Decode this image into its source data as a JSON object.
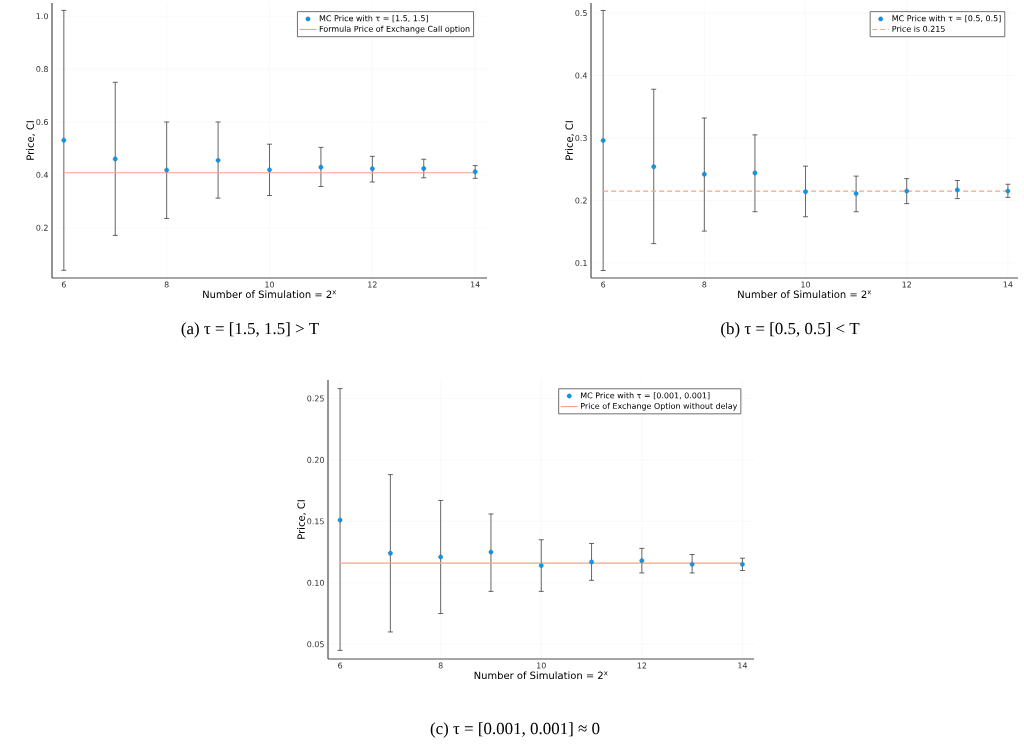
{
  "chart_data": [
    {
      "type": "scatter",
      "title": "(a) τ = [1.5, 1.5] > T",
      "xlabel": "Number of Simulation = 2$^{x}$",
      "ylabel": "Price, CI",
      "x": [
        6,
        7,
        8,
        9,
        10,
        11,
        12,
        13,
        14
      ],
      "series": [
        {
          "name": "MC Price with τ = [1.5, 1.5]",
          "color": "#009af9",
          "values": [
            0.531,
            0.46,
            0.418,
            0.455,
            0.419,
            0.429,
            0.423,
            0.424,
            0.412
          ],
          "errors": [
            [
              0.039,
              1.022
            ],
            [
              0.171,
              0.75
            ],
            [
              0.235,
              0.6
            ],
            [
              0.312,
              0.6
            ],
            [
              0.322,
              0.516
            ],
            [
              0.356,
              0.504
            ],
            [
              0.373,
              0.47
            ],
            [
              0.389,
              0.459
            ],
            [
              0.387,
              0.435
            ]
          ]
        }
      ],
      "ref_lines": [
        {
          "axis": "y",
          "value": 0.408,
          "label": "Formula Price of Exchange Call option",
          "color": "#f2a58a",
          "line_style": "solid"
        }
      ],
      "xlim": [
        5.77,
        14.23
      ],
      "ylim": [
        0.01,
        1.05
      ],
      "xticks": [
        6,
        8,
        10,
        12,
        14
      ],
      "yticks": [
        0.2,
        0.4,
        0.6,
        0.8,
        {
          "value": 1,
          "label": "1.0"
        }
      ],
      "grid": true,
      "legend": "top right",
      "marker": "circle"
    },
    {
      "type": "scatter",
      "title": "(b) τ = [0.5, 0.5] < T",
      "xlabel": "Number of Simulation = 2$^{x}$",
      "ylabel": "Price, CI",
      "x": [
        6,
        7,
        8,
        9,
        10,
        11,
        12,
        13,
        14
      ],
      "series": [
        {
          "name": "MC Price with τ = [0.5, 0.5]",
          "color": "#009af9",
          "values": [
            0.296,
            0.254,
            0.242,
            0.244,
            0.214,
            0.211,
            0.215,
            0.217,
            0.215
          ],
          "errors": [
            [
              0.088,
              0.504
            ],
            [
              0.131,
              0.378
            ],
            [
              0.151,
              0.332
            ],
            [
              0.182,
              0.305
            ],
            [
              0.174,
              0.255
            ],
            [
              0.182,
              0.239
            ],
            [
              0.195,
              0.235
            ],
            [
              0.203,
              0.232
            ],
            [
              0.205,
              0.226
            ]
          ]
        }
      ],
      "ref_lines": [
        {
          "axis": "y",
          "value": 0.215,
          "label": "Price is 0.215",
          "color": "#f2a58a",
          "line_style": "dashed"
        }
      ],
      "xlim": [
        5.76,
        14.2
      ],
      "ylim": [
        0.076,
        0.516
      ],
      "xticks": [
        6,
        8,
        10,
        12,
        14
      ],
      "yticks": [
        0.1,
        0.2,
        0.3,
        0.4,
        0.5
      ],
      "grid": true,
      "legend": "top right",
      "marker": "circle"
    },
    {
      "type": "scatter",
      "title": "(c) τ = [0.001, 0.001] ≈ 0",
      "xlabel": "Number of Simulation = 2$^{x}$",
      "ylabel": "Price, CI",
      "x": [
        6,
        7,
        8,
        9,
        10,
        11,
        12,
        13,
        14
      ],
      "series": [
        {
          "name": "MC Price with τ = [0.001, 0.001]",
          "color": "#009af9",
          "values": [
            0.151,
            0.124,
            0.121,
            0.125,
            0.114,
            0.117,
            0.118,
            0.115,
            0.115
          ],
          "errors": [
            [
              0.045,
              0.258
            ],
            [
              0.06,
              0.188
            ],
            [
              0.075,
              0.167
            ],
            [
              0.093,
              0.156
            ],
            [
              0.093,
              0.135
            ],
            [
              0.102,
              0.132
            ],
            [
              0.108,
              0.128
            ],
            [
              0.108,
              0.123
            ],
            [
              0.11,
              0.12
            ]
          ]
        }
      ],
      "ref_lines": [
        {
          "axis": "y",
          "value": 0.116,
          "label": "Price of Exchange Option without delay",
          "color": "#f2a58a",
          "line_style": "solid"
        }
      ],
      "xlim": [
        5.76,
        14.23
      ],
      "ylim": [
        0.038,
        0.265
      ],
      "xticks": [
        6,
        8,
        10,
        12,
        14
      ],
      "yticks": [
        0.05,
        {
          "value": 0.1,
          "label": "0.10"
        },
        {
          "value": 0.15,
          "label": "0.15"
        },
        {
          "value": 0.2,
          "label": "0.20"
        },
        {
          "value": 0.25,
          "label": "0.25"
        }
      ],
      "grid": true,
      "legend": "top right",
      "marker": "circle"
    }
  ]
}
